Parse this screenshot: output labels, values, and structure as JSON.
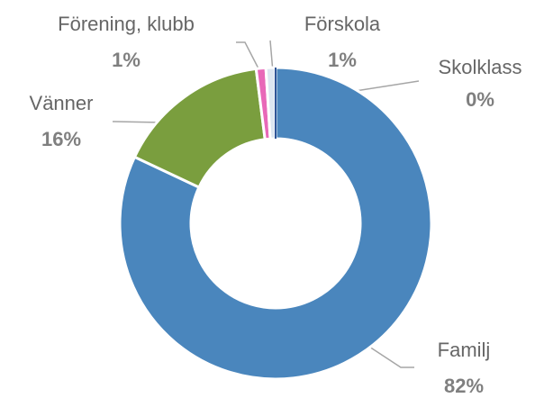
{
  "chart_data": {
    "type": "donut",
    "categories": [
      "Familj",
      "Vänner",
      "Förening, klubb",
      "Förskola",
      "Skolklass"
    ],
    "values": [
      82,
      16,
      1,
      1,
      0
    ],
    "value_labels": [
      "82%",
      "16%",
      "1%",
      "1%",
      "0%"
    ],
    "colors": [
      "#4a86bd",
      "#7a9e3e",
      "#e868b8",
      "#dce6f1",
      "#2f5597"
    ]
  }
}
